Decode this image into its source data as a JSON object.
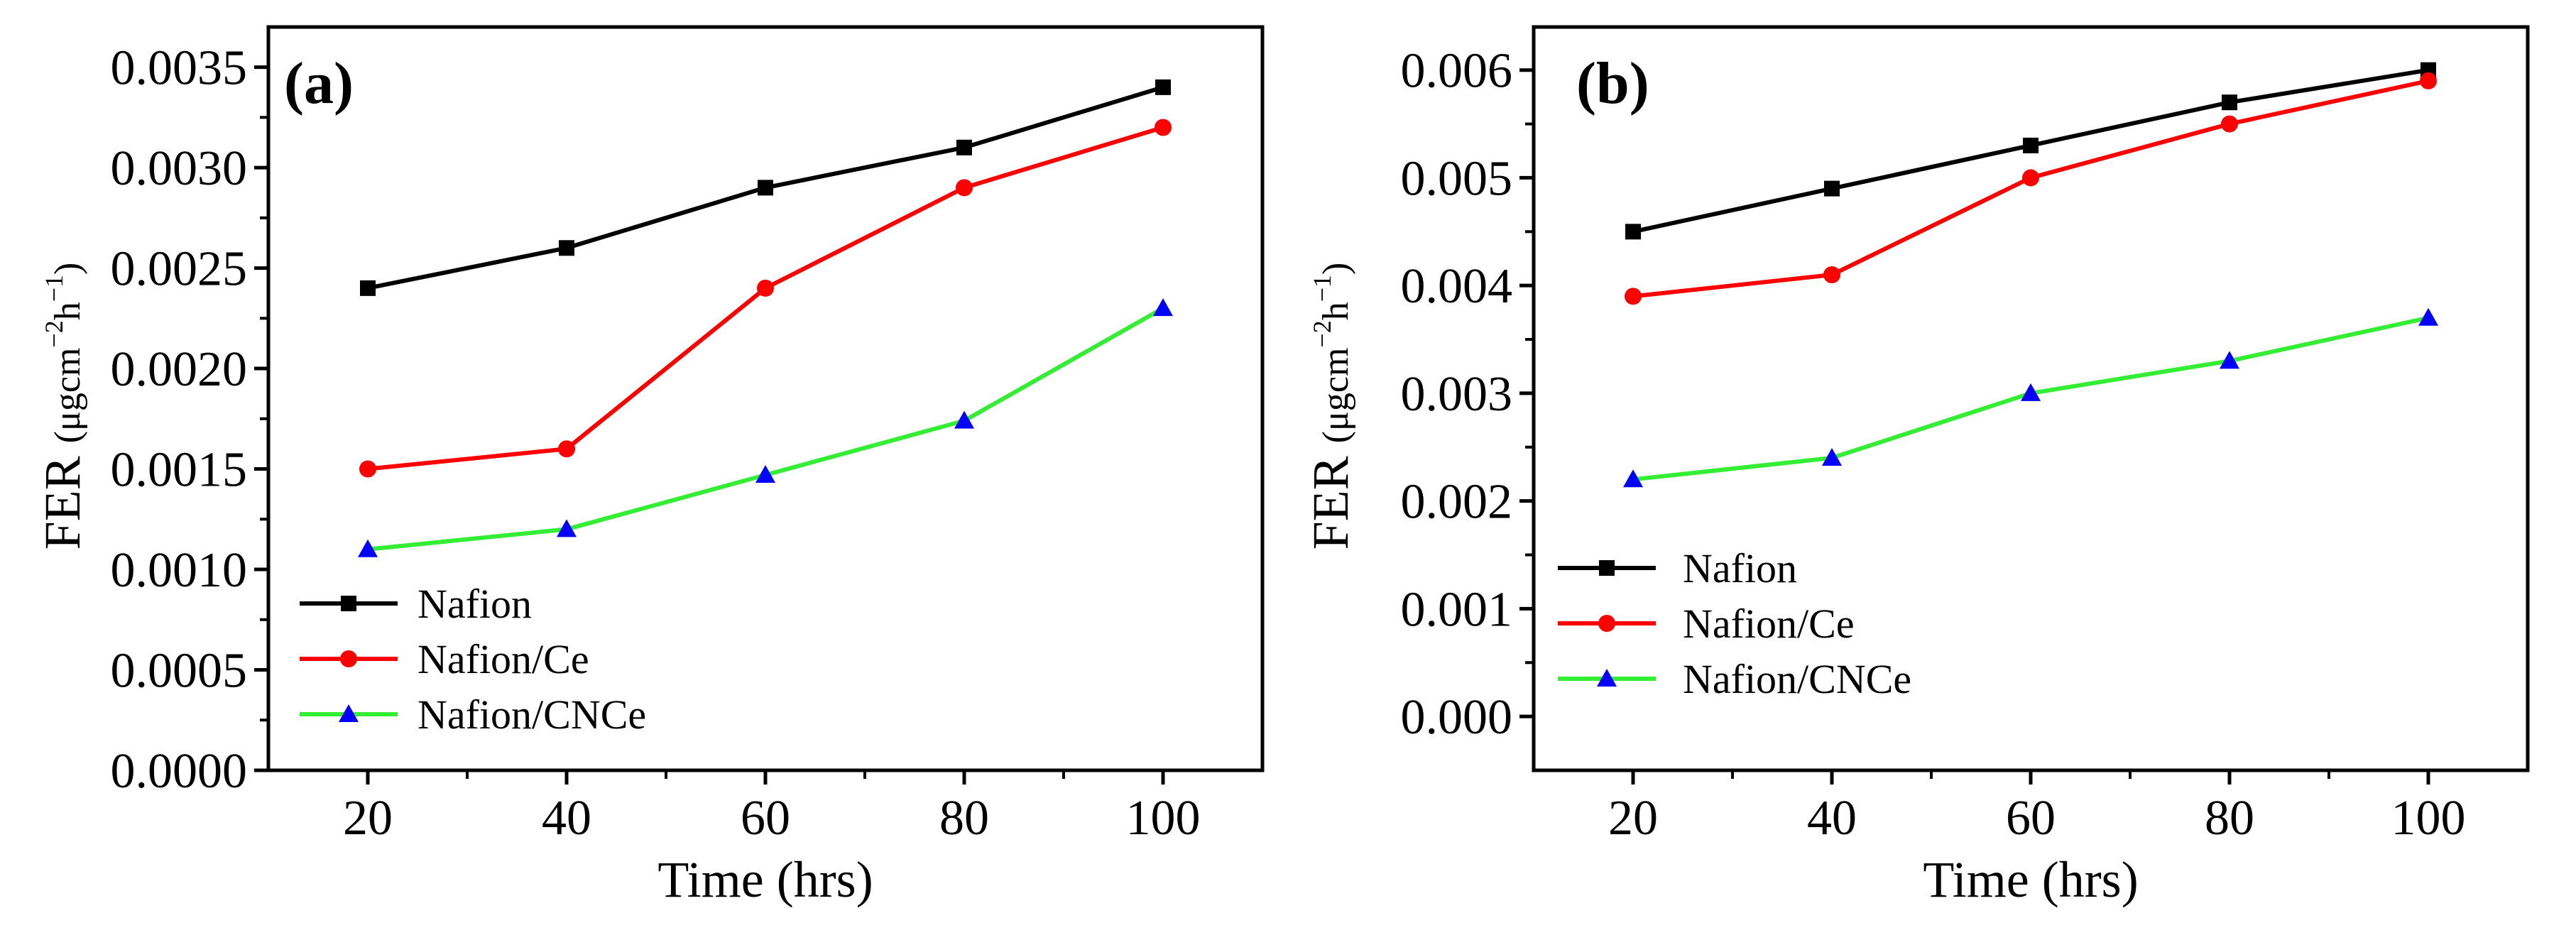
{
  "chart_data": [
    {
      "type": "line",
      "panel_label": "(a)",
      "xlabel": "Time (hrs)",
      "ylabel_main": "FER",
      "ylabel_unit": "(μgcm",
      "ylabel_exp1": "−2",
      "ylabel_mid": "h",
      "ylabel_exp2": "−1",
      "ylabel_close": ")",
      "xlim": [
        10,
        110
      ],
      "ylim": [
        0,
        0.0037
      ],
      "xticks": [
        20,
        40,
        60,
        80,
        100
      ],
      "xtick_labels": [
        "20",
        "40",
        "60",
        "80",
        "100"
      ],
      "yticks": [
        0,
        0.0005,
        0.001,
        0.0015,
        0.002,
        0.0025,
        0.003,
        0.0035
      ],
      "ytick_labels": [
        "0.0000",
        "0.0005",
        "0.0010",
        "0.0015",
        "0.0020",
        "0.0025",
        "0.0030",
        "0.0035"
      ],
      "legend_position": "bottom-left",
      "x": [
        20,
        40,
        60,
        80,
        100
      ],
      "series": [
        {
          "name": "Nafion",
          "color": "#000000",
          "marker": "square",
          "values": [
            0.0024,
            0.0026,
            0.0029,
            0.0031,
            0.0034
          ]
        },
        {
          "name": "Nafion/Ce",
          "color": "#ff0000",
          "marker": "circle",
          "values": [
            0.0015,
            0.0016,
            0.0024,
            0.0029,
            0.0032
          ]
        },
        {
          "name": "Nafion/CNCe",
          "color": "#33ee33",
          "marker_color": "#0000ff",
          "marker": "triangle",
          "values": [
            0.0011,
            0.0012,
            0.00147,
            0.00174,
            0.0023
          ]
        }
      ]
    },
    {
      "type": "line",
      "panel_label": "(b)",
      "xlabel": "Time (hrs)",
      "ylabel_main": "FER",
      "ylabel_unit": "(μgcm",
      "ylabel_exp1": "−2",
      "ylabel_mid": "h",
      "ylabel_exp2": "−1",
      "ylabel_close": ")",
      "xlim": [
        10,
        110
      ],
      "ylim": [
        -0.0005,
        0.0064
      ],
      "xticks": [
        20,
        40,
        60,
        80,
        100
      ],
      "xtick_labels": [
        "20",
        "40",
        "60",
        "80",
        "100"
      ],
      "yticks": [
        0,
        0.001,
        0.002,
        0.003,
        0.004,
        0.005,
        0.006
      ],
      "ytick_labels": [
        "0.000",
        "0.001",
        "0.002",
        "0.003",
        "0.004",
        "0.005",
        "0.006"
      ],
      "legend_position": "middle-left",
      "x": [
        20,
        40,
        60,
        80,
        100
      ],
      "series": [
        {
          "name": "Nafion",
          "color": "#000000",
          "marker": "square",
          "values": [
            0.0045,
            0.0049,
            0.0053,
            0.0057,
            0.006
          ]
        },
        {
          "name": "Nafion/Ce",
          "color": "#ff0000",
          "marker": "circle",
          "values": [
            0.0039,
            0.0041,
            0.005,
            0.0055,
            0.0059
          ]
        },
        {
          "name": "Nafion/CNCe",
          "color": "#33ee33",
          "marker_color": "#0000ff",
          "marker": "triangle",
          "values": [
            0.0022,
            0.0024,
            0.003,
            0.0033,
            0.0037
          ]
        }
      ]
    }
  ]
}
